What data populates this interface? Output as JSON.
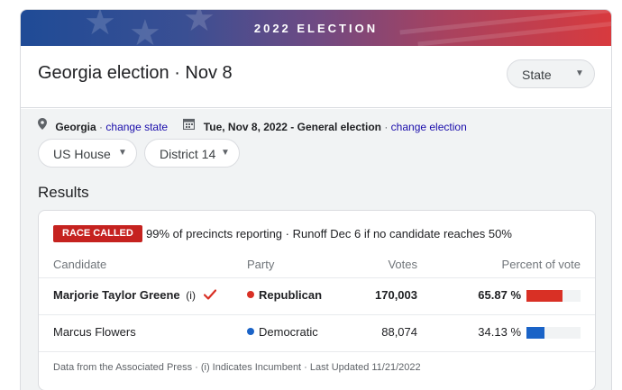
{
  "banner": {
    "title": "2022 ELECTION"
  },
  "header": {
    "title": "Georgia election · Nov 8",
    "state_select": {
      "label": "State"
    }
  },
  "meta": {
    "state": "Georgia",
    "change_state": "change state",
    "date_election": "Tue, Nov 8, 2022 - General election",
    "change_election": "change election",
    "separator": "·"
  },
  "filters": {
    "race": "US House",
    "district": "District 14"
  },
  "results": {
    "heading": "Results",
    "badge": "RACE CALLED",
    "reporting": "99% of precincts reporting · Runoff Dec 6 if no candidate reaches 50%",
    "columns": [
      "Candidate",
      "Party",
      "Votes",
      "Percent of vote"
    ],
    "candidates": [
      {
        "name": "Marjorie Taylor Greene",
        "incumbent": "(i)",
        "winner": true,
        "party": "Republican",
        "party_color": "#d93025",
        "votes": "170,003",
        "percent": "65.87 %",
        "share": 0.6587
      },
      {
        "name": "Marcus Flowers",
        "incumbent": "",
        "winner": false,
        "party": "Democratic",
        "party_color": "#1a63c7",
        "votes": "88,074",
        "percent": "34.13 %",
        "share": 0.3413
      }
    ],
    "footnote": "Data from the Associated Press · (i) Indicates Incumbent · Last Updated 11/21/2022"
  },
  "colors": {
    "winner_check": "#d93025",
    "link": "#1a0dab",
    "badge": "#c5221f"
  }
}
